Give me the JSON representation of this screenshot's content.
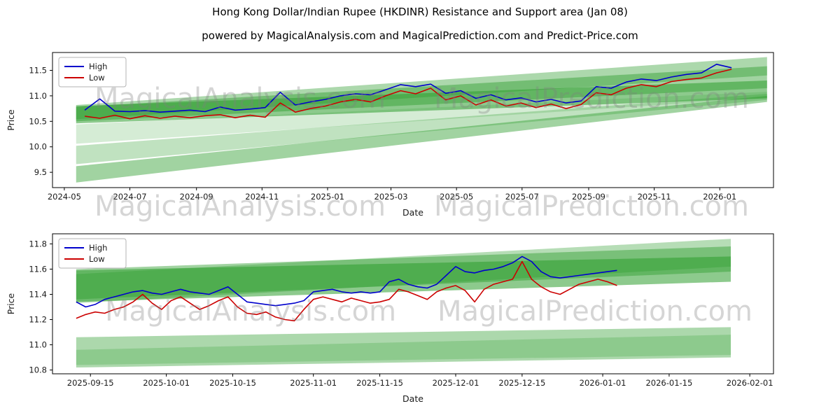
{
  "page": {
    "title": "Hong Kong Dollar/Indian Rupee (HKDINR) Resistance and Support area (Jan 08)",
    "subtitle": "powered by MagicalAnalysis.com and MagicalPrediction.com and Predict-Price.com",
    "watermarks": [
      "MagicalAnalysis.com",
      "MagicalPrediction.com"
    ]
  },
  "colors": {
    "high": "#0000cc",
    "low": "#cc0000",
    "band": "#2f9e2f"
  },
  "chart_data": [
    {
      "type": "line",
      "xlabel": "Date",
      "ylabel": "Price",
      "x_range": [
        "2024-04-20",
        "2026-02-20"
      ],
      "y_range": [
        9.2,
        11.85
      ],
      "y_ticks": [
        9.5,
        10.0,
        10.5,
        11.0,
        11.5
      ],
      "x_ticks": [
        {
          "date": "2024-05-01",
          "label": "2024-05"
        },
        {
          "date": "2024-07-01",
          "label": "2024-07"
        },
        {
          "date": "2024-09-01",
          "label": "2024-09"
        },
        {
          "date": "2024-11-01",
          "label": "2024-11"
        },
        {
          "date": "2025-01-01",
          "label": "2025-01"
        },
        {
          "date": "2025-03-01",
          "label": "2025-03"
        },
        {
          "date": "2025-05-01",
          "label": "2025-05"
        },
        {
          "date": "2025-07-01",
          "label": "2025-07"
        },
        {
          "date": "2025-09-01",
          "label": "2025-09"
        },
        {
          "date": "2025-11-01",
          "label": "2025-11"
        },
        {
          "date": "2026-01-01",
          "label": "2026-01"
        }
      ],
      "series_start": "2024-05-20",
      "series_step_days": 14,
      "series": [
        {
          "name": "High",
          "color": "#0000cc",
          "values": [
            10.72,
            10.94,
            10.7,
            10.69,
            10.71,
            10.68,
            10.7,
            10.72,
            10.69,
            10.78,
            10.72,
            10.74,
            10.77,
            11.07,
            10.82,
            10.88,
            10.93,
            11.0,
            11.04,
            11.02,
            11.12,
            11.22,
            11.18,
            11.23,
            11.05,
            11.1,
            10.95,
            11.02,
            10.92,
            10.96,
            10.88,
            10.93,
            10.86,
            10.9,
            11.18,
            11.15,
            11.27,
            11.33,
            11.3,
            11.37,
            11.42,
            11.45,
            11.62,
            11.55
          ]
        },
        {
          "name": "Low",
          "color": "#cc0000",
          "values": [
            10.6,
            10.56,
            10.62,
            10.55,
            10.61,
            10.56,
            10.6,
            10.57,
            10.61,
            10.63,
            10.57,
            10.62,
            10.58,
            10.86,
            10.68,
            10.75,
            10.8,
            10.88,
            10.93,
            10.88,
            11.0,
            11.1,
            11.04,
            11.15,
            10.92,
            11.0,
            10.82,
            10.92,
            10.8,
            10.86,
            10.77,
            10.84,
            10.75,
            10.83,
            11.06,
            11.02,
            11.15,
            11.22,
            11.18,
            11.28,
            11.32,
            11.35,
            11.45,
            11.52
          ]
        }
      ],
      "bands": [
        {
          "x0": "2024-05-12",
          "x1": "2026-02-14",
          "y0": [
            9.3,
            9.62
          ],
          "y1": [
            10.88,
            11.0
          ],
          "alpha": 0.45
        },
        {
          "x0": "2024-05-12",
          "x1": "2026-02-14",
          "y0": [
            9.66,
            10.02
          ],
          "y1": [
            10.92,
            11.04
          ],
          "alpha": 0.3
        },
        {
          "x0": "2024-05-12",
          "x1": "2026-02-14",
          "y0": [
            10.06,
            10.44
          ],
          "y1": [
            10.96,
            11.08
          ],
          "alpha": 0.2
        },
        {
          "x0": "2024-05-12",
          "x1": "2026-02-14",
          "y0": [
            10.46,
            10.8
          ],
          "y1": [
            10.95,
            11.3
          ],
          "alpha": 0.55
        },
        {
          "x0": "2024-05-12",
          "x1": "2026-02-14",
          "y0": [
            10.5,
            10.78
          ],
          "y1": [
            11.15,
            11.58
          ],
          "alpha": 0.45
        },
        {
          "x0": "2024-05-12",
          "x1": "2026-02-14",
          "y0": [
            10.54,
            10.82
          ],
          "y1": [
            11.4,
            11.76
          ],
          "alpha": 0.4
        }
      ],
      "legend": [
        "High",
        "Low"
      ],
      "legend_position": "upper left",
      "grid": false
    },
    {
      "type": "line",
      "xlabel": "Date",
      "ylabel": "Price",
      "x_range": [
        "2025-09-07",
        "2026-02-06"
      ],
      "y_range": [
        10.77,
        11.88
      ],
      "y_ticks": [
        10.8,
        11.0,
        11.2,
        11.4,
        11.6,
        11.8
      ],
      "x_ticks": [
        {
          "date": "2025-09-15",
          "label": "2025-09-15"
        },
        {
          "date": "2025-10-01",
          "label": "2025-10-01"
        },
        {
          "date": "2025-10-15",
          "label": "2025-10-15"
        },
        {
          "date": "2025-11-01",
          "label": "2025-11-01"
        },
        {
          "date": "2025-11-15",
          "label": "2025-11-15"
        },
        {
          "date": "2025-12-01",
          "label": "2025-12-01"
        },
        {
          "date": "2025-12-15",
          "label": "2025-12-15"
        },
        {
          "date": "2026-01-01",
          "label": "2026-01-01"
        },
        {
          "date": "2026-01-15",
          "label": "2026-01-15"
        },
        {
          "date": "2026-02-01",
          "label": "2026-02-01"
        }
      ],
      "series_start": "2025-09-12",
      "series_step_days": 2,
      "series": [
        {
          "name": "High",
          "color": "#0000cc",
          "values": [
            11.34,
            11.3,
            11.32,
            11.36,
            11.38,
            11.4,
            11.42,
            11.43,
            11.41,
            11.4,
            11.42,
            11.44,
            11.42,
            11.41,
            11.4,
            11.43,
            11.46,
            11.4,
            11.34,
            11.33,
            11.32,
            11.31,
            11.32,
            11.33,
            11.35,
            11.42,
            11.43,
            11.44,
            11.42,
            11.41,
            11.42,
            11.41,
            11.42,
            11.5,
            11.52,
            11.48,
            11.46,
            11.45,
            11.48,
            11.55,
            11.62,
            11.58,
            11.57,
            11.59,
            11.6,
            11.62,
            11.65,
            11.7,
            11.66,
            11.58,
            11.54,
            11.53,
            11.54,
            11.55,
            11.56,
            11.57,
            11.58,
            11.59
          ]
        },
        {
          "name": "Low",
          "color": "#cc0000",
          "values": [
            11.21,
            11.24,
            11.26,
            11.25,
            11.28,
            11.3,
            11.34,
            11.4,
            11.33,
            11.28,
            11.35,
            11.38,
            11.33,
            11.28,
            11.31,
            11.35,
            11.38,
            11.3,
            11.25,
            11.24,
            11.26,
            11.22,
            11.2,
            11.19,
            11.28,
            11.36,
            11.38,
            11.36,
            11.34,
            11.37,
            11.35,
            11.33,
            11.34,
            11.36,
            11.44,
            11.42,
            11.39,
            11.36,
            11.42,
            11.45,
            11.47,
            11.43,
            11.34,
            11.44,
            11.48,
            11.5,
            11.52,
            11.66,
            11.52,
            11.46,
            11.42,
            11.4,
            11.44,
            11.48,
            11.5,
            11.52,
            11.5,
            11.47
          ]
        }
      ],
      "bands": [
        {
          "x0": "2025-09-12",
          "x1": "2026-01-28",
          "y0": [
            10.82,
            11.06
          ],
          "y1": [
            10.9,
            11.14
          ],
          "alpha": 0.4
        },
        {
          "x0": "2025-09-12",
          "x1": "2026-01-28",
          "y0": [
            10.84,
            10.96
          ],
          "y1": [
            10.92,
            11.08
          ],
          "alpha": 0.25
        },
        {
          "x0": "2025-09-12",
          "x1": "2026-01-28",
          "y0": [
            11.34,
            11.59
          ],
          "y1": [
            11.5,
            11.7
          ],
          "alpha": 0.55
        },
        {
          "x0": "2025-09-12",
          "x1": "2026-01-28",
          "y0": [
            11.36,
            11.6
          ],
          "y1": [
            11.58,
            11.78
          ],
          "alpha": 0.45
        },
        {
          "x0": "2025-09-12",
          "x1": "2026-01-28",
          "y0": [
            11.33,
            11.56
          ],
          "y1": [
            11.62,
            11.84
          ],
          "alpha": 0.35
        }
      ],
      "legend": [
        "High",
        "Low"
      ],
      "legend_position": "upper left",
      "grid": false
    }
  ]
}
